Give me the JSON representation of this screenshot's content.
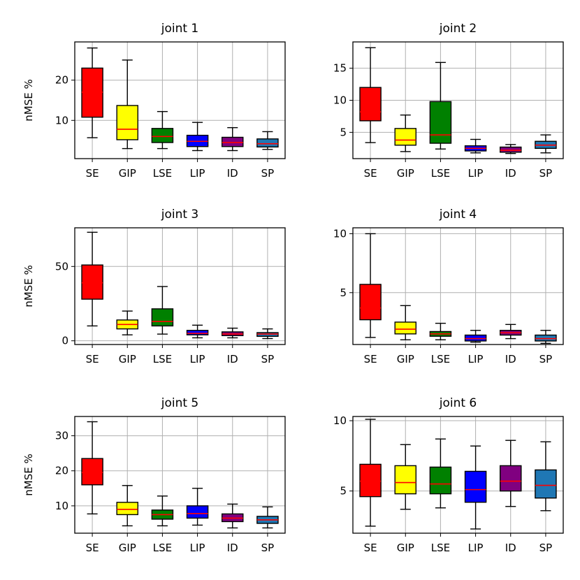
{
  "chart_data": [
    {
      "type": "boxplot",
      "title": "joint 1",
      "ylabel": "nMSE %",
      "categories": [
        "SE",
        "GIP",
        "LSE",
        "LIP",
        "ID",
        "SP"
      ],
      "colors": [
        "#ff0000",
        "#ffff00",
        "#008000",
        "#0000ff",
        "#800080",
        "#1f77b4"
      ],
      "ylim": [
        0.5,
        29.5
      ],
      "yticks": [
        10,
        20
      ],
      "boxes": [
        {
          "whislo": 5.7,
          "q1": 10.8,
          "med": 17.0,
          "q3": 23.0,
          "whishi": 28.0
        },
        {
          "whislo": 3.0,
          "q1": 5.2,
          "med": 7.8,
          "q3": 13.7,
          "whishi": 25.0
        },
        {
          "whislo": 3.0,
          "q1": 4.5,
          "med": 6.0,
          "q3": 8.0,
          "whishi": 12.2
        },
        {
          "whislo": 2.5,
          "q1": 3.5,
          "med": 4.8,
          "q3": 6.3,
          "whishi": 9.5
        },
        {
          "whislo": 2.5,
          "q1": 3.5,
          "med": 4.5,
          "q3": 5.8,
          "whishi": 8.2
        },
        {
          "whislo": 2.8,
          "q1": 3.4,
          "med": 4.2,
          "q3": 5.4,
          "whishi": 7.2
        }
      ]
    },
    {
      "type": "boxplot",
      "title": "joint 2",
      "ylabel": "",
      "categories": [
        "SE",
        "GIP",
        "LSE",
        "LIP",
        "ID",
        "SP"
      ],
      "colors": [
        "#ff0000",
        "#ffff00",
        "#008000",
        "#0000ff",
        "#800080",
        "#1f77b4"
      ],
      "ylim": [
        0.9,
        19.1
      ],
      "yticks": [
        5,
        10,
        15
      ],
      "boxes": [
        {
          "whislo": 3.4,
          "q1": 6.8,
          "med": 8.2,
          "q3": 12.0,
          "whishi": 18.2
        },
        {
          "whislo": 2.0,
          "q1": 3.0,
          "med": 3.8,
          "q3": 5.6,
          "whishi": 7.7
        },
        {
          "whislo": 2.4,
          "q1": 3.3,
          "med": 4.6,
          "q3": 9.8,
          "whishi": 15.9
        },
        {
          "whislo": 1.8,
          "q1": 2.1,
          "med": 2.5,
          "q3": 2.9,
          "whishi": 3.9
        },
        {
          "whislo": 1.7,
          "q1": 1.9,
          "med": 2.2,
          "q3": 2.7,
          "whishi": 3.1
        },
        {
          "whislo": 1.8,
          "q1": 2.5,
          "med": 3.0,
          "q3": 3.6,
          "whishi": 4.6
        }
      ]
    },
    {
      "type": "boxplot",
      "title": "joint 3",
      "ylabel": "nMSE %",
      "categories": [
        "SE",
        "GIP",
        "LSE",
        "LIP",
        "ID",
        "SP"
      ],
      "colors": [
        "#ff0000",
        "#ffff00",
        "#008000",
        "#0000ff",
        "#800080",
        "#1f77b4"
      ],
      "ylim": [
        -2.5,
        76
      ],
      "yticks": [
        0,
        50
      ],
      "boxes": [
        {
          "whislo": 10.0,
          "q1": 28.0,
          "med": 39.0,
          "q3": 51.0,
          "whishi": 73.0
        },
        {
          "whislo": 4.0,
          "q1": 8.0,
          "med": 11.0,
          "q3": 14.0,
          "whishi": 20.0
        },
        {
          "whislo": 4.5,
          "q1": 10.0,
          "med": 13.0,
          "q3": 21.5,
          "whishi": 36.5
        },
        {
          "whislo": 2.0,
          "q1": 4.0,
          "med": 5.0,
          "q3": 7.0,
          "whishi": 10.5
        },
        {
          "whislo": 2.0,
          "q1": 3.5,
          "med": 4.5,
          "q3": 6.0,
          "whishi": 8.5
        },
        {
          "whislo": 1.5,
          "q1": 3.0,
          "med": 4.5,
          "q3": 5.5,
          "whishi": 8.0
        }
      ]
    },
    {
      "type": "boxplot",
      "title": "joint 4",
      "ylabel": "",
      "categories": [
        "SE",
        "GIP",
        "LSE",
        "LIP",
        "ID",
        "SP"
      ],
      "colors": [
        "#ff0000",
        "#ffff00",
        "#008000",
        "#0000ff",
        "#800080",
        "#1f77b4"
      ],
      "ylim": [
        0.6,
        10.5
      ],
      "yticks": [
        5,
        10
      ],
      "boxes": [
        {
          "whislo": 1.2,
          "q1": 2.7,
          "med": 3.7,
          "q3": 5.7,
          "whishi": 10.0
        },
        {
          "whislo": 1.0,
          "q1": 1.5,
          "med": 1.9,
          "q3": 2.5,
          "whishi": 3.9
        },
        {
          "whislo": 1.0,
          "q1": 1.3,
          "med": 1.5,
          "q3": 1.7,
          "whishi": 2.4
        },
        {
          "whislo": 0.8,
          "q1": 0.9,
          "med": 1.1,
          "q3": 1.4,
          "whishi": 1.8
        },
        {
          "whislo": 1.1,
          "q1": 1.4,
          "med": 1.6,
          "q3": 1.8,
          "whishi": 2.3
        },
        {
          "whislo": 0.7,
          "q1": 0.9,
          "med": 1.1,
          "q3": 1.4,
          "whishi": 1.8
        }
      ]
    },
    {
      "type": "boxplot",
      "title": "joint 5",
      "ylabel": "nMSE %",
      "categories": [
        "SE",
        "GIP",
        "LSE",
        "LIP",
        "ID",
        "SP"
      ],
      "colors": [
        "#ff0000",
        "#ffff00",
        "#008000",
        "#0000ff",
        "#800080",
        "#1f77b4"
      ],
      "ylim": [
        2.2,
        35.5
      ],
      "yticks": [
        10,
        20,
        30
      ],
      "boxes": [
        {
          "whislo": 7.7,
          "q1": 16.0,
          "med": 19.5,
          "q3": 23.5,
          "whishi": 34.0
        },
        {
          "whislo": 4.3,
          "q1": 7.5,
          "med": 9.0,
          "q3": 11.0,
          "whishi": 15.8
        },
        {
          "whislo": 4.3,
          "q1": 6.2,
          "med": 7.5,
          "q3": 8.8,
          "whishi": 12.8
        },
        {
          "whislo": 4.5,
          "q1": 6.5,
          "med": 7.8,
          "q3": 10.0,
          "whishi": 15.0
        },
        {
          "whislo": 3.7,
          "q1": 5.5,
          "med": 6.5,
          "q3": 7.7,
          "whishi": 10.5
        },
        {
          "whislo": 3.7,
          "q1": 5.0,
          "med": 6.0,
          "q3": 7.0,
          "whishi": 9.7
        }
      ]
    },
    {
      "type": "boxplot",
      "title": "joint 6",
      "ylabel": "",
      "categories": [
        "SE",
        "GIP",
        "LSE",
        "LIP",
        "ID",
        "SP"
      ],
      "colors": [
        "#ff0000",
        "#ffff00",
        "#008000",
        "#0000ff",
        "#800080",
        "#1f77b4"
      ],
      "ylim": [
        2.0,
        10.3
      ],
      "yticks": [
        5,
        10
      ],
      "boxes": [
        {
          "whislo": 2.5,
          "q1": 4.6,
          "med": 5.7,
          "q3": 6.9,
          "whishi": 10.1
        },
        {
          "whislo": 3.7,
          "q1": 4.8,
          "med": 5.6,
          "q3": 6.8,
          "whishi": 8.3
        },
        {
          "whislo": 3.8,
          "q1": 4.8,
          "med": 5.5,
          "q3": 6.7,
          "whishi": 8.7
        },
        {
          "whislo": 2.3,
          "q1": 4.2,
          "med": 5.1,
          "q3": 6.4,
          "whishi": 8.2
        },
        {
          "whislo": 3.9,
          "q1": 5.0,
          "med": 5.7,
          "q3": 6.8,
          "whishi": 8.6
        },
        {
          "whislo": 3.6,
          "q1": 4.5,
          "med": 5.4,
          "q3": 6.5,
          "whishi": 8.5
        }
      ]
    }
  ]
}
